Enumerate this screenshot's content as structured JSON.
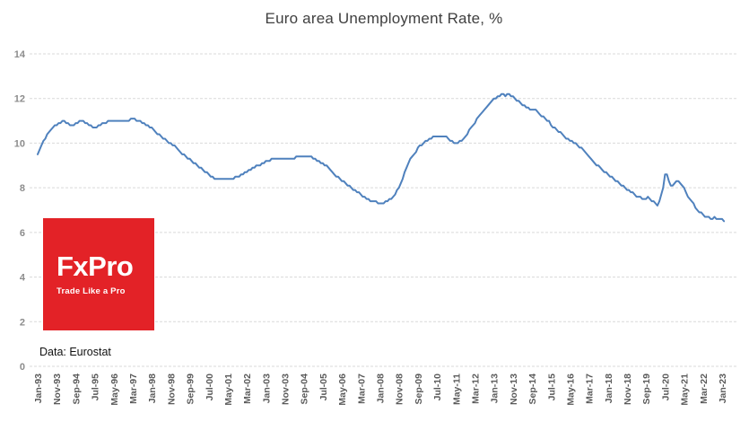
{
  "source_label": "Data: Eurostat",
  "logo": {
    "brand": "FxPro",
    "tagline": "Trade Like a Pro",
    "bg_color": "#e32227",
    "text_color": "#ffffff"
  },
  "chart_data": {
    "type": "line",
    "title": "Euro area Unemployment Rate, %",
    "frequency": "monthly",
    "start": "Jan-93",
    "end": "Feb-23",
    "ylim": [
      0,
      14
    ],
    "y_ticks": [
      0,
      2,
      4,
      6,
      8,
      10,
      12,
      14
    ],
    "grid": "horizontal-dashed",
    "grid_color": "#d9d9d9",
    "line_color": "#4f81bd",
    "ytick_color": "#8c8c8c",
    "xtick_color": "#595959",
    "x_tick_interval_months": 10,
    "x_tick_labels": [
      "Jan-93",
      "Nov-93",
      "Sep-94",
      "Jul-95",
      "May-96",
      "Mar-97",
      "Jan-98",
      "Nov-98",
      "Sep-99",
      "Jul-00",
      "May-01",
      "Mar-02",
      "Jan-03",
      "Nov-03",
      "Sep-04",
      "Jul-05",
      "May-06",
      "Mar-07",
      "Jan-08",
      "Nov-08",
      "Sep-09",
      "Jul-10",
      "May-11",
      "Mar-12",
      "Jan-13",
      "Nov-13",
      "Sep-14",
      "Jul-15",
      "May-16",
      "Mar-17",
      "Jan-18",
      "Nov-18",
      "Sep-19",
      "Jul-20",
      "May-21",
      "Mar-22",
      "Jan-23"
    ],
    "values": [
      9.5,
      9.7,
      9.9,
      10.1,
      10.2,
      10.4,
      10.5,
      10.6,
      10.7,
      10.8,
      10.8,
      10.9,
      10.9,
      11.0,
      11.0,
      10.9,
      10.9,
      10.8,
      10.8,
      10.8,
      10.9,
      10.9,
      11.0,
      11.0,
      11.0,
      10.9,
      10.9,
      10.8,
      10.8,
      10.7,
      10.7,
      10.7,
      10.8,
      10.8,
      10.9,
      10.9,
      10.9,
      11.0,
      11.0,
      11.0,
      11.0,
      11.0,
      11.0,
      11.0,
      11.0,
      11.0,
      11.0,
      11.0,
      11.0,
      11.1,
      11.1,
      11.1,
      11.0,
      11.0,
      11.0,
      10.9,
      10.9,
      10.8,
      10.8,
      10.7,
      10.7,
      10.6,
      10.5,
      10.4,
      10.4,
      10.3,
      10.2,
      10.2,
      10.1,
      10.0,
      10.0,
      9.9,
      9.9,
      9.8,
      9.7,
      9.6,
      9.5,
      9.5,
      9.4,
      9.3,
      9.3,
      9.2,
      9.1,
      9.1,
      9.0,
      8.9,
      8.9,
      8.8,
      8.7,
      8.7,
      8.6,
      8.5,
      8.5,
      8.4,
      8.4,
      8.4,
      8.4,
      8.4,
      8.4,
      8.4,
      8.4,
      8.4,
      8.4,
      8.4,
      8.5,
      8.5,
      8.5,
      8.6,
      8.6,
      8.7,
      8.7,
      8.8,
      8.8,
      8.9,
      8.9,
      9.0,
      9.0,
      9.0,
      9.1,
      9.1,
      9.2,
      9.2,
      9.2,
      9.3,
      9.3,
      9.3,
      9.3,
      9.3,
      9.3,
      9.3,
      9.3,
      9.3,
      9.3,
      9.3,
      9.3,
      9.3,
      9.4,
      9.4,
      9.4,
      9.4,
      9.4,
      9.4,
      9.4,
      9.4,
      9.4,
      9.3,
      9.3,
      9.2,
      9.2,
      9.1,
      9.1,
      9.0,
      9.0,
      8.9,
      8.8,
      8.7,
      8.6,
      8.5,
      8.5,
      8.4,
      8.3,
      8.3,
      8.2,
      8.1,
      8.1,
      8.0,
      7.9,
      7.9,
      7.8,
      7.8,
      7.7,
      7.6,
      7.6,
      7.5,
      7.5,
      7.4,
      7.4,
      7.4,
      7.4,
      7.3,
      7.3,
      7.3,
      7.3,
      7.4,
      7.4,
      7.5,
      7.5,
      7.6,
      7.7,
      7.9,
      8.0,
      8.2,
      8.4,
      8.7,
      8.9,
      9.1,
      9.3,
      9.4,
      9.5,
      9.6,
      9.8,
      9.9,
      9.9,
      10.0,
      10.1,
      10.1,
      10.2,
      10.2,
      10.3,
      10.3,
      10.3,
      10.3,
      10.3,
      10.3,
      10.3,
      10.3,
      10.2,
      10.1,
      10.1,
      10.0,
      10.0,
      10.0,
      10.1,
      10.1,
      10.2,
      10.3,
      10.4,
      10.6,
      10.7,
      10.8,
      10.9,
      11.1,
      11.2,
      11.3,
      11.4,
      11.5,
      11.6,
      11.7,
      11.8,
      11.9,
      12.0,
      12.0,
      12.1,
      12.1,
      12.2,
      12.2,
      12.1,
      12.2,
      12.2,
      12.1,
      12.1,
      12.0,
      11.9,
      11.9,
      11.8,
      11.7,
      11.7,
      11.6,
      11.6,
      11.5,
      11.5,
      11.5,
      11.5,
      11.4,
      11.3,
      11.2,
      11.2,
      11.1,
      11.0,
      11.0,
      10.8,
      10.7,
      10.7,
      10.6,
      10.5,
      10.5,
      10.4,
      10.3,
      10.2,
      10.2,
      10.1,
      10.1,
      10.0,
      10.0,
      9.9,
      9.8,
      9.8,
      9.7,
      9.6,
      9.5,
      9.4,
      9.3,
      9.2,
      9.1,
      9.0,
      9.0,
      8.9,
      8.8,
      8.7,
      8.7,
      8.6,
      8.5,
      8.5,
      8.4,
      8.3,
      8.3,
      8.2,
      8.1,
      8.1,
      8.0,
      7.9,
      7.9,
      7.8,
      7.8,
      7.7,
      7.6,
      7.6,
      7.6,
      7.5,
      7.5,
      7.5,
      7.6,
      7.5,
      7.4,
      7.4,
      7.3,
      7.2,
      7.4,
      7.7,
      8.0,
      8.6,
      8.6,
      8.3,
      8.1,
      8.1,
      8.2,
      8.3,
      8.3,
      8.2,
      8.1,
      8.0,
      7.8,
      7.6,
      7.5,
      7.4,
      7.3,
      7.1,
      7.0,
      6.9,
      6.9,
      6.8,
      6.7,
      6.7,
      6.7,
      6.6,
      6.6,
      6.7,
      6.6,
      6.6,
      6.6,
      6.6,
      6.5
    ]
  }
}
